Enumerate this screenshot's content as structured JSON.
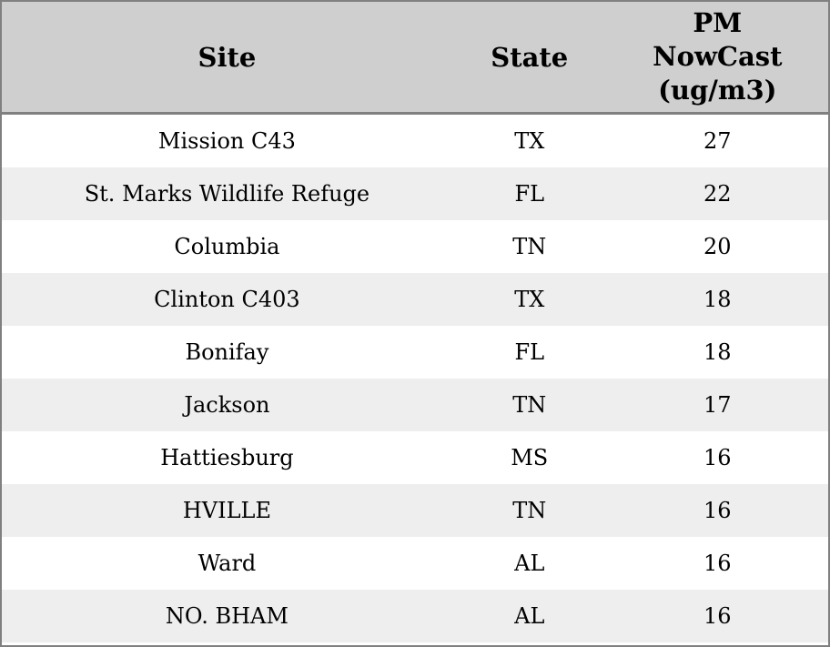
{
  "chart_data": {
    "type": "table",
    "columns": [
      "Site",
      "State",
      "PM NowCast (ug/m3)"
    ],
    "rows": [
      [
        "Mission C43",
        "TX",
        27
      ],
      [
        "St. Marks Wildlife Refuge",
        "FL",
        22
      ],
      [
        "Columbia",
        "TN",
        20
      ],
      [
        "Clinton C403",
        "TX",
        18
      ],
      [
        "Bonifay",
        "FL",
        18
      ],
      [
        "Jackson",
        "TN",
        17
      ],
      [
        "Hattiesburg",
        "MS",
        16
      ],
      [
        "HVILLE",
        "TN",
        16
      ],
      [
        "Ward",
        "AL",
        16
      ],
      [
        "NO. BHAM",
        "AL",
        16
      ]
    ]
  },
  "table": {
    "headers": {
      "site": "Site",
      "state": "State",
      "pm": "PM\nNowCast\n(ug/m3)"
    },
    "rows": [
      {
        "site": "Mission C43",
        "state": "TX",
        "pm": "27"
      },
      {
        "site": "St. Marks Wildlife Refuge",
        "state": "FL",
        "pm": "22"
      },
      {
        "site": "Columbia",
        "state": "TN",
        "pm": "20"
      },
      {
        "site": "Clinton C403",
        "state": "TX",
        "pm": "18"
      },
      {
        "site": "Bonifay",
        "state": "FL",
        "pm": "18"
      },
      {
        "site": "Jackson",
        "state": "TN",
        "pm": "17"
      },
      {
        "site": "Hattiesburg",
        "state": "MS",
        "pm": "16"
      },
      {
        "site": "HVILLE",
        "state": "TN",
        "pm": "16"
      },
      {
        "site": "Ward",
        "state": "AL",
        "pm": "16"
      },
      {
        "site": "NO. BHAM",
        "state": "AL",
        "pm": "16"
      }
    ]
  },
  "colors": {
    "header_bg": "#cfcfcf",
    "row_even_bg": "#eeeeee",
    "row_odd_bg": "#ffffff",
    "border": "#808080",
    "text": "#000000"
  }
}
